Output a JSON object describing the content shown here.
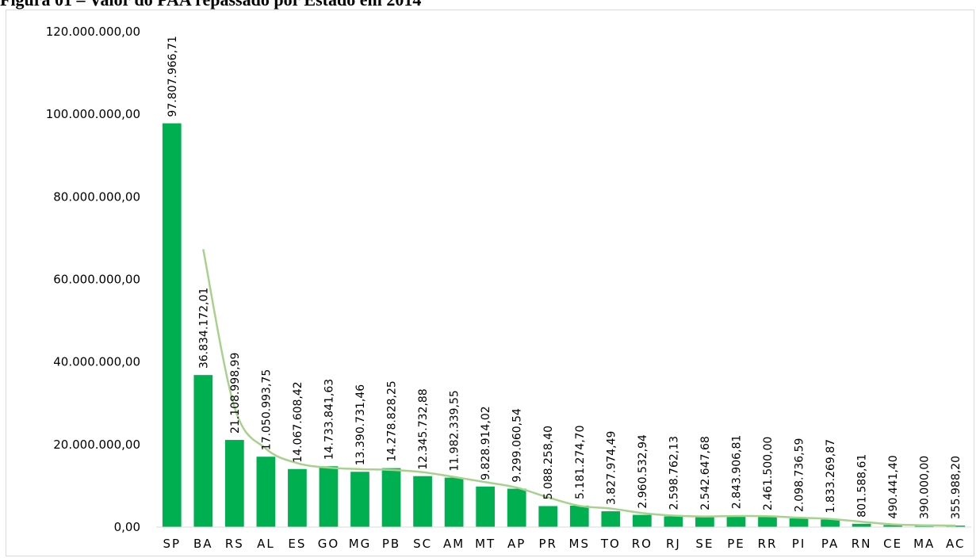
{
  "title": "Figura 01 – Valor do PAA repassado por Estado em 2014",
  "chart_data": {
    "type": "bar",
    "title": "Figura 01 – Valor do PAA repassado por Estado em 2014",
    "xlabel": "",
    "ylabel": "",
    "ylim": [
      0,
      120000000
    ],
    "yticks": [
      0,
      20000000,
      40000000,
      60000000,
      80000000,
      100000000,
      120000000
    ],
    "ytick_labels": [
      "0,00",
      "20.000.000,00",
      "40.000.000,00",
      "60.000.000,00",
      "80.000.000,00",
      "100.000.000,00",
      "120.000.000,00"
    ],
    "grid": false,
    "categories": [
      "SP",
      "BA",
      "RS",
      "AL",
      "ES",
      "GO",
      "MG",
      "PB",
      "SC",
      "AM",
      "MT",
      "AP",
      "PR",
      "MS",
      "TO",
      "RO",
      "RJ",
      "SE",
      "PE",
      "RR",
      "PI",
      "PA",
      "RN",
      "CE",
      "MA",
      "AC"
    ],
    "values": [
      97807966.71,
      36834172.01,
      21108998.99,
      17050993.75,
      14067608.42,
      14733841.63,
      13390731.46,
      14278828.25,
      12345732.88,
      11982339.55,
      9828914.02,
      9299060.54,
      5088258.4,
      5181274.7,
      3827974.49,
      2960532.94,
      2598762.13,
      2542647.68,
      2843906.81,
      2461500.0,
      2098736.59,
      1833269.87,
      801588.61,
      490441.4,
      390000.0,
      355988.2
    ],
    "data_labels": [
      "97.807.966,71",
      "36.834.172,01",
      "21.108.998,99",
      "17.050.993,75",
      "14.067.608,42",
      "14.733.841,63",
      "13.390.731,46",
      "14.278.828,25",
      "12.345.732,88",
      "11.982.339,55",
      "9.828.914,02",
      "9.299.060,54",
      "5.088.258,40",
      "5.181.274,70",
      "3.827.974,49",
      "2.960.532,94",
      "2.598.762,13",
      "2.542.647,68",
      "2.843.906,81",
      "2.461.500,00",
      "2.098.736,59",
      "1.833.269,87",
      "801.588,61",
      "490.441,40",
      "390.000,00",
      "355.988,20"
    ],
    "trendline": {
      "type": "moving-average",
      "from_category": "BA",
      "values": [
        67300000,
        29000000,
        19000000,
        15500000,
        14400000,
        14050000,
        13850000,
        13300000,
        12150000,
        10900000,
        9560000,
        7200000,
        5150000,
        4500000,
        3400000,
        2780000,
        2570000,
        2690000,
        2650000,
        2280000,
        1970000,
        1300000,
        650000,
        440000,
        370000
      ]
    },
    "colors": {
      "bar": "#00b050",
      "trendline": "#a9d18e",
      "axis": "#d9d9d9"
    }
  }
}
